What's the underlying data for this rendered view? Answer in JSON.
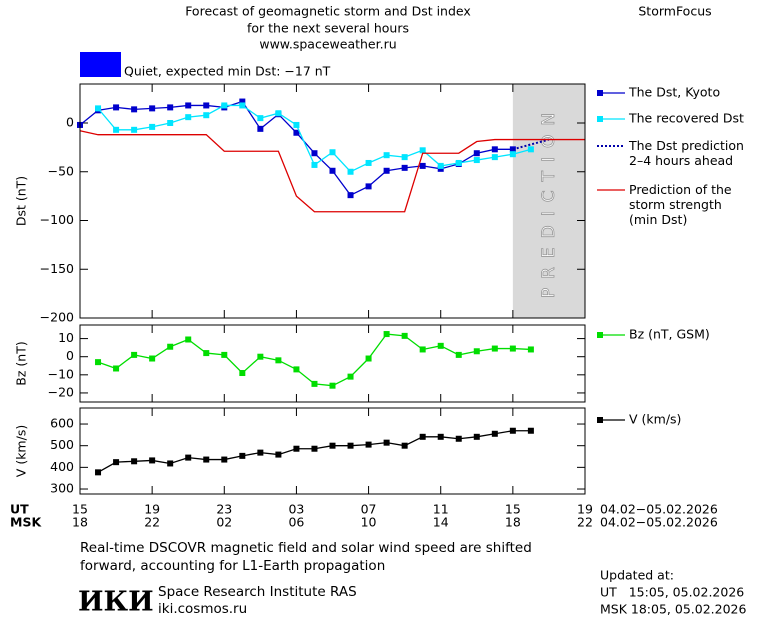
{
  "header": {
    "title_lines": [
      "Forecast of geomagnetic storm and Dst index",
      "for the next several hours",
      "www.spaceweather.ru"
    ],
    "brand": "StormFocus",
    "status": "Quiet, expected min Dst: −17 nT",
    "status_color": "#0000ff"
  },
  "x_axis": {
    "xlim": [
      0,
      28
    ],
    "xticks": [
      {
        "value": 0,
        "label": "15"
      },
      {
        "value": 4,
        "label": "19"
      },
      {
        "value": 8,
        "label": "23"
      },
      {
        "value": 12,
        "label": "03"
      },
      {
        "value": 16,
        "label": "07"
      },
      {
        "value": 20,
        "label": "11"
      },
      {
        "value": 24,
        "label": "15"
      },
      {
        "value": 28,
        "label": "19"
      }
    ],
    "xticks_msk": [
      {
        "value": 0,
        "label": "18"
      },
      {
        "value": 4,
        "label": "22"
      },
      {
        "value": 8,
        "label": "02"
      },
      {
        "value": 12,
        "label": "06"
      },
      {
        "value": 16,
        "label": "10"
      },
      {
        "value": 20,
        "label": "14"
      },
      {
        "value": 24,
        "label": "18"
      },
      {
        "value": 28,
        "label": "22"
      }
    ],
    "ut_label": "UT",
    "msk_label": "MSK",
    "date_range_ut": "04.02−05.02.2026",
    "date_range_msk": "04.02−05.02.2026"
  },
  "chart_data": [
    {
      "type": "line",
      "ylabel": "Dst (nT)",
      "ylim": [
        -200,
        40
      ],
      "yticks": [
        {
          "value": 0,
          "label": "0"
        },
        {
          "value": -50,
          "label": "−50"
        },
        {
          "value": -100,
          "label": "−100"
        },
        {
          "value": -150,
          "label": "−150"
        },
        {
          "value": -200,
          "label": "−200"
        }
      ],
      "prediction_region": {
        "x": [
          24,
          28
        ],
        "label": "PREDICTION",
        "color": "#d9d9d9"
      },
      "series": [
        {
          "name": "The Dst, Kyoto",
          "color": "#0000cc",
          "marker": "square",
          "x": [
            0,
            1,
            2,
            3,
            4,
            5,
            6,
            7,
            8,
            9,
            10,
            11,
            12,
            13,
            14,
            15,
            16,
            17,
            18,
            19,
            20,
            21,
            22,
            23,
            24
          ],
          "values": [
            -2,
            13,
            16,
            14,
            15,
            16,
            18,
            18,
            16,
            22,
            -6,
            9,
            -10,
            -31,
            -49,
            -74,
            -65,
            -49,
            -46,
            -44,
            -47,
            -42,
            -31,
            -27,
            -27
          ]
        },
        {
          "name": "The recovered Dst",
          "color": "#00e5ff",
          "marker": "square",
          "x": [
            1,
            2,
            3,
            4,
            5,
            6,
            7,
            8,
            9,
            10,
            11,
            12,
            13,
            14,
            15,
            16,
            17,
            18,
            19,
            20,
            21,
            22,
            23,
            24,
            25
          ],
          "values": [
            15,
            -7,
            -7,
            -4,
            0,
            6,
            8,
            18,
            18,
            5,
            10,
            -2,
            -43,
            -30,
            -50,
            -41,
            -33,
            -35,
            -28,
            -44,
            -41,
            -38,
            -35,
            -32,
            -27
          ]
        },
        {
          "name": "The Dst prediction\n2–4 hours ahead",
          "color": "#0000aa",
          "dash": true,
          "x": [
            24,
            25,
            26
          ],
          "values": [
            -27,
            -22,
            -17
          ]
        },
        {
          "name": "Prediction of the\nstorm strength\n(min Dst)",
          "color": "#dd0000",
          "x": [
            0,
            1,
            7,
            8,
            11,
            12,
            13,
            18,
            19,
            21,
            22,
            23,
            28
          ],
          "values": [
            -8,
            -12,
            -12,
            -29,
            -29,
            -75,
            -91,
            -91,
            -31,
            -31,
            -19,
            -17,
            -17
          ]
        }
      ]
    },
    {
      "type": "line",
      "ylabel": "Bz (nT)",
      "ylim": [
        -25,
        17.5
      ],
      "yticks": [
        10,
        0,
        {
          "value": -10,
          "label": "−10"
        },
        {
          "value": -20,
          "label": "−20"
        }
      ],
      "series": [
        {
          "name": "Bz (nT, GSM)",
          "color": "#00dd00",
          "marker": "square",
          "x": [
            1,
            2,
            3,
            4,
            5,
            6,
            7,
            8,
            9,
            10,
            11,
            12,
            13,
            14,
            15,
            16,
            17,
            18,
            19,
            20,
            21,
            22,
            23,
            24,
            25
          ],
          "values": [
            -3,
            -6.5,
            1,
            -1,
            5.5,
            9.5,
            2,
            1,
            -9,
            0,
            -2,
            -7,
            -15,
            -16,
            -11,
            -1,
            12.5,
            11.5,
            4,
            6,
            1,
            3,
            4.5,
            4.5,
            4
          ]
        }
      ]
    },
    {
      "type": "line",
      "ylabel": "V (km/s)",
      "ylim": [
        277,
        674
      ],
      "yticks": [
        600,
        500,
        400,
        300
      ],
      "series": [
        {
          "name": "V (km/s)",
          "color": "#000000",
          "marker": "square",
          "x": [
            1,
            2,
            3,
            4,
            5,
            6,
            7,
            8,
            9,
            10,
            11,
            12,
            13,
            14,
            15,
            16,
            17,
            18,
            19,
            20,
            21,
            22,
            23,
            24,
            25
          ],
          "values": [
            377,
            424,
            428,
            432,
            418,
            445,
            436,
            436,
            453,
            468,
            459,
            486,
            486,
            500,
            500,
            505,
            514,
            500,
            541,
            541,
            532,
            541,
            555,
            569,
            569
          ]
        }
      ]
    }
  ],
  "footer": {
    "note_lines": [
      "Real-time DSCOVR magnetic field and solar wind speed are shifted",
      "forward, accounting for L1-Earth propagation"
    ],
    "logo": "ИКИ",
    "institute": "Space Research Institute RAS",
    "site": "iki.cosmos.ru",
    "updated_label": "Updated at:",
    "updated_ut": "UT   15:05, 05.02.2026",
    "updated_msk": "MSK 18:05, 05.02.2026"
  }
}
